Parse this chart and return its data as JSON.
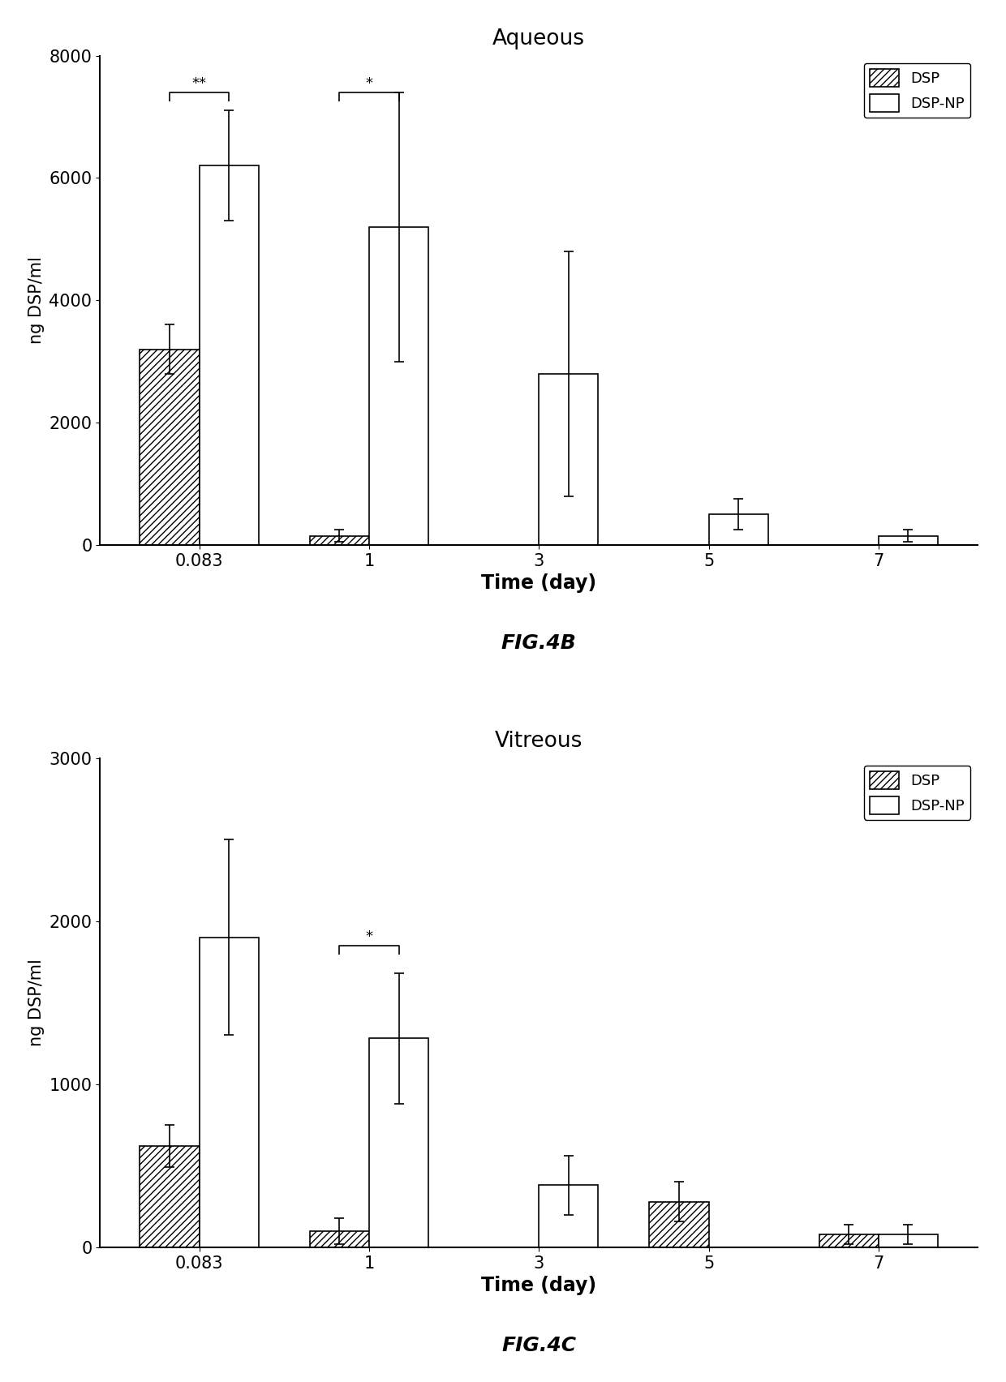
{
  "chart1": {
    "title": "Aqueous",
    "fig_label": "FIG.4B",
    "xlabel": "Time (day)",
    "ylabel": "ng DSP/ml",
    "ylim": [
      0,
      8000
    ],
    "yticks": [
      0,
      2000,
      4000,
      6000,
      8000
    ],
    "time_labels": [
      "0.083",
      "1",
      "3",
      "5",
      "7"
    ],
    "dsp_values": [
      3200,
      150,
      0,
      0,
      0
    ],
    "dsp_np_values": [
      6200,
      5200,
      2800,
      500,
      150
    ],
    "dsp_errors": [
      400,
      100,
      0,
      0,
      0
    ],
    "dsp_np_errors": [
      900,
      2200,
      2000,
      250,
      100
    ],
    "sig_brackets": [
      {
        "time_idx": 0,
        "y": 7400,
        "label": "**"
      },
      {
        "time_idx": 1,
        "y": 7400,
        "label": "*"
      }
    ]
  },
  "chart2": {
    "title": "Vitreous",
    "fig_label": "FIG.4C",
    "xlabel": "Time (day)",
    "ylabel": "ng DSP/ml",
    "ylim": [
      0,
      3000
    ],
    "yticks": [
      0,
      1000,
      2000,
      3000
    ],
    "time_labels": [
      "0.083",
      "1",
      "3",
      "5",
      "7"
    ],
    "dsp_values": [
      620,
      100,
      0,
      280,
      80
    ],
    "dsp_np_values": [
      1900,
      1280,
      380,
      0,
      80
    ],
    "dsp_errors": [
      130,
      80,
      0,
      120,
      60
    ],
    "dsp_np_errors": [
      600,
      400,
      180,
      0,
      60
    ],
    "sig_brackets": [
      {
        "time_idx": 1,
        "y": 1850,
        "label": "*"
      }
    ]
  },
  "bar_width": 0.35,
  "dsp_hatch": "////",
  "legend_labels": [
    "DSP",
    "DSP-NP"
  ],
  "bg_color": "#ffffff"
}
